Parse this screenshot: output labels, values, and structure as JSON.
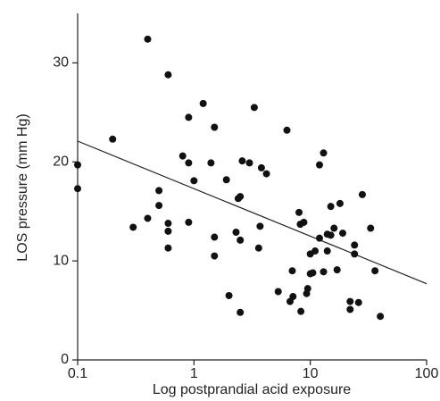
{
  "chart_data": {
    "type": "scatter",
    "x_label": "Log postprandial acid exposure",
    "y_label": "LOS pressure (mm Hg)",
    "x": [
      0.1,
      0.1,
      0.2,
      0.3,
      0.4,
      0.4,
      0.5,
      0.5,
      0.6,
      0.6,
      0.6,
      0.6,
      0.8,
      0.9,
      0.9,
      0.9,
      1.0,
      1.2,
      1.4,
      1.5,
      1.5,
      1.5,
      1.9,
      2.0,
      2.3,
      2.4,
      2.5,
      2.5,
      2.5,
      2.6,
      3.0,
      3.3,
      3.6,
      3.7,
      3.8,
      4.2,
      5.3,
      6.3,
      6.7,
      7.0,
      7.1,
      8.0,
      8.2,
      8.3,
      8.8,
      9.3,
      9.5,
      10,
      10,
      10.5,
      11,
      12,
      12,
      13,
      13,
      14,
      14,
      15,
      15,
      16,
      17,
      18,
      19,
      22,
      22,
      24,
      24,
      26,
      28,
      33,
      36,
      40
    ],
    "values": [
      19.7,
      17.3,
      22.3,
      13.4,
      32.4,
      14.3,
      17.1,
      15.6,
      28.8,
      13.8,
      13.0,
      11.3,
      20.6,
      24.5,
      19.9,
      13.9,
      18.1,
      25.9,
      19.9,
      23.5,
      12.4,
      10.5,
      18.2,
      6.5,
      12.9,
      16.3,
      16.5,
      12.1,
      4.8,
      20.1,
      19.9,
      25.5,
      11.3,
      13.5,
      19.4,
      18.8,
      6.9,
      23.2,
      5.9,
      9.0,
      6.4,
      14.9,
      13.7,
      4.9,
      13.9,
      6.7,
      7.2,
      8.7,
      10.7,
      8.8,
      11.0,
      19.7,
      12.3,
      20.9,
      8.9,
      12.7,
      11.0,
      15.5,
      12.6,
      13.3,
      9.1,
      15.8,
      12.8,
      5.9,
      5.1,
      11.6,
      10.7,
      5.8,
      16.7,
      13.3,
      9.0,
      4.4
    ],
    "color": "#111111",
    "fit": {
      "x": [
        0.1,
        100
      ],
      "y": [
        22.1,
        7.7
      ]
    },
    "xlim": [
      0.1,
      100
    ],
    "xticks": [
      0.1,
      1,
      10,
      100
    ],
    "xscale": "log",
    "ylim": [
      0,
      35
    ],
    "yticks": [
      0,
      10,
      20,
      30
    ]
  }
}
